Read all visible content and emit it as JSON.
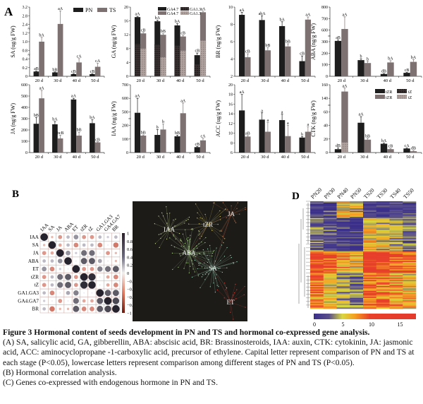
{
  "panel_labels": {
    "a": "A",
    "b": "B",
    "c": "C",
    "d": "D"
  },
  "legend_pn_ts": {
    "pn": "PN",
    "ts": "TS"
  },
  "legend_ga": {
    "pn_ga47": "GA4.7",
    "pn_ga13": "GA1.3",
    "ts_ga47": "GA4.7",
    "ts_ga13": "GA1.3"
  },
  "legend_ctk": {
    "pn_tzr": "tZR",
    "pn_tz": "tZ",
    "ts_tzr": "tZR",
    "ts_tz": "tZ"
  },
  "colors": {
    "pn": "#1e1d1d",
    "ts": "#7d7171",
    "pn_lower": "#3a3232",
    "ts_lower": "#a99c98",
    "bg_c": "#1c1b18"
  },
  "chart_data": [
    {
      "type": "bar",
      "id": "sa",
      "ylabel": "SA (ug/g FW)",
      "categories": [
        "20 d",
        "30 d",
        "40 d",
        "50 d"
      ],
      "ticks": [
        0,
        0.2,
        0.4,
        0.8,
        1.0,
        1.2,
        2.4,
        2.8,
        3.2
      ],
      "tick_labels": [
        "0",
        "0.2",
        "0.4",
        "0.8",
        "1.0",
        "1.2",
        "2.4",
        "2.8",
        "3.2"
      ],
      "breaks": [
        2,
        5
      ],
      "series": [
        {
          "name": "PN",
          "values": [
            0.11,
            0.09,
            0.05,
            0.05
          ],
          "errors": [
            0.01,
            0.01,
            0.01,
            0.01
          ],
          "letters": [
            "aB",
            "bB",
            "cB",
            "cB"
          ]
        },
        {
          "name": "TS",
          "values": [
            1.0,
            2.42,
            0.32,
            0.22
          ],
          "errors": [
            0.1,
            0.6,
            0.1,
            0.08
          ],
          "letters": [
            "bA",
            "aA",
            "cA",
            "cA"
          ]
        }
      ]
    },
    {
      "type": "bar",
      "id": "ga",
      "ylabel": "GA (ng/g FW)",
      "categories": [
        "20 d",
        "30 d",
        "40 d",
        "50 d"
      ],
      "stacked": true,
      "ticks": [
        0,
        4,
        8,
        12,
        16,
        20
      ],
      "tick_labels": [
        "0",
        "4",
        "8",
        "12",
        "16",
        "20"
      ],
      "breaks": [],
      "series": [
        {
          "name": "PN",
          "values": [
            17.1,
            15.9,
            14.7,
            6.1
          ],
          "lower": [
            9.3,
            9.2,
            8.8,
            3.4
          ],
          "errors": [
            0.2,
            0.3,
            0.5,
            0.6
          ],
          "letters": [
            "aA",
            "bA",
            "bA",
            "cB"
          ]
        },
        {
          "name": "TS",
          "values": [
            12.4,
            12.0,
            11.5,
            18.5
          ],
          "lower": [
            8.0,
            5.5,
            7.4,
            10.3
          ],
          "errors": [
            0.3,
            0.3,
            0.3,
            0.3
          ],
          "letters": [
            "cB",
            "bB",
            "cB",
            "aA"
          ]
        }
      ]
    },
    {
      "type": "bar",
      "id": "br",
      "ylabel": "BR (ng/g FW)",
      "categories": [
        "20 d",
        "30 d",
        "40 d",
        "50 d"
      ],
      "ticks": [
        2,
        4,
        6,
        8,
        10
      ],
      "tick_labels": [
        "2",
        "4",
        "6",
        "8",
        "10"
      ],
      "breaks": [],
      "series": [
        {
          "name": "PN",
          "values": [
            9.1,
            8.5,
            7.8,
            3.75
          ],
          "errors": [
            0.3,
            0.5,
            0.5,
            0.6
          ],
          "letters": [
            "aA",
            "abA",
            "bA",
            "cB"
          ]
        },
        {
          "name": "TS",
          "values": [
            4.2,
            5.0,
            5.45,
            8.55
          ],
          "errors": [
            0.4,
            0.3,
            0.3,
            0.3
          ],
          "letters": [
            "cB",
            "bB",
            "bB",
            "aA"
          ]
        }
      ]
    },
    {
      "type": "bar",
      "id": "aba",
      "ylabel": "ABA (ng/g FW)",
      "categories": [
        "20 d",
        "30 d",
        "40 d",
        "50 d"
      ],
      "ticks": [
        0,
        100,
        200,
        300,
        600,
        700,
        800
      ],
      "tick_labels": [
        "0",
        "100",
        "200",
        "300",
        "600",
        "700",
        "800"
      ],
      "breaks": [
        3
      ],
      "series": [
        {
          "name": "PN",
          "values": [
            320,
            140,
            20,
            30
          ],
          "errors": [
            25,
            12,
            4,
            4
          ],
          "letters": [
            "aB",
            "b",
            "dB",
            "cB"
          ]
        },
        {
          "name": "TS",
          "values": [
            610,
            115,
            120,
            125
          ],
          "errors": [
            105,
            15,
            15,
            20
          ],
          "letters": [
            "aA",
            "b",
            "bA",
            "bA"
          ]
        }
      ]
    },
    {
      "type": "bar",
      "id": "ja",
      "ylabel": "JA (ng/g FW)",
      "categories": [
        "20 d",
        "30 d",
        "40 d",
        "50 d"
      ],
      "ticks": [
        0,
        100,
        200,
        300,
        400,
        500,
        600
      ],
      "tick_labels": [
        "0",
        "100",
        "200",
        "300",
        "400",
        "500",
        "600"
      ],
      "breaks": [],
      "series": [
        {
          "name": "PN",
          "values": [
            255,
            250,
            470,
            260
          ],
          "errors": [
            55,
            25,
            10,
            30
          ],
          "letters": [
            "bB",
            "bA",
            "aA",
            "bA"
          ]
        },
        {
          "name": "TS",
          "values": [
            480,
            125,
            150,
            90
          ],
          "errors": [
            70,
            28,
            30,
            5
          ],
          "letters": [
            "aA",
            "bcB",
            "bB",
            "cB"
          ]
        }
      ]
    },
    {
      "type": "bar",
      "id": "iaa",
      "ylabel": "IAA (ng/g FW)",
      "categories": [
        "20 d",
        "30 d",
        "40 d",
        "50 d"
      ],
      "ticks": [
        0,
        100,
        200,
        500,
        600,
        700
      ],
      "tick_labels": [
        "0",
        "100",
        "200",
        "500",
        "600",
        "700"
      ],
      "breaks": [
        2
      ],
      "series": [
        {
          "name": "PN",
          "values": [
            480,
            130,
            120,
            40
          ],
          "errors": [
            120,
            40,
            8,
            5
          ],
          "letters": [
            "aA",
            "b",
            "bB",
            "cB"
          ]
        },
        {
          "name": "TS",
          "values": [
            125,
            170,
            470,
            90
          ],
          "errors": [
            5,
            60,
            95,
            15
          ],
          "letters": [
            "bB",
            "b",
            "aA",
            "cA"
          ]
        }
      ]
    },
    {
      "type": "bar",
      "id": "acc",
      "ylabel": "ACC (ug/g FW)",
      "categories": [
        "20 d",
        "30 d",
        "40 d",
        "50 d"
      ],
      "ticks": [
        6,
        8,
        10,
        12,
        14,
        16,
        18,
        20
      ],
      "tick_labels": [
        "6",
        "8",
        "10",
        "12",
        "14",
        "16",
        "18",
        "20"
      ],
      "breaks": [],
      "series": [
        {
          "name": "PN",
          "values": [
            14.7,
            12.8,
            12.7,
            9.1
          ],
          "errors": [
            3.3,
            1.4,
            1.2,
            0.2
          ],
          "letters": [
            "aA",
            "a",
            "a",
            "b"
          ]
        },
        {
          "name": "TS",
          "values": [
            9.3,
            10.3,
            9.4,
            10.3
          ],
          "errors": [
            0.2,
            1.9,
            2.2,
            1.0
          ],
          "letters": [
            "aB",
            "a",
            "a",
            "a"
          ]
        }
      ]
    },
    {
      "type": "bar",
      "id": "ctk",
      "ylabel": "CTK (ng/g FW)",
      "categories": [
        "20 d",
        "30 d",
        "40 d",
        "50 d"
      ],
      "stacked": true,
      "ticks": [
        0,
        20,
        40,
        60,
        140,
        160
      ],
      "tick_labels": [
        "0",
        "20",
        "40",
        "60",
        "140",
        "160"
      ],
      "breaks": [
        3
      ],
      "series": [
        {
          "name": "PN",
          "values": [
            5,
            44,
            13,
            6
          ],
          "lower": [
            0,
            0,
            0,
            0
          ],
          "errors": [
            2,
            9,
            1,
            1
          ],
          "letters": [
            "dB",
            "aA",
            "bA",
            "cA"
          ]
        },
        {
          "name": "TS",
          "values": [
            150,
            19,
            5,
            2
          ],
          "lower": [
            15,
            0,
            0,
            0
          ],
          "errors": [
            5,
            2,
            1,
            1
          ],
          "letters": [
            "aA",
            "bB",
            "cB",
            "dB"
          ]
        }
      ]
    },
    {
      "type": "heatmap",
      "id": "correlation",
      "title": "Hormonal correlation",
      "labels": [
        "IAA",
        "SA",
        "JA",
        "ABA",
        "ET",
        "tZR",
        "tZ",
        "GA1.GA3",
        "GA4.GA7",
        "BR"
      ],
      "matrix": [
        [
          1,
          -0.1,
          -0.3,
          0.2,
          0.4,
          -0.3,
          -0.3,
          0.2,
          0.1,
          0.2
        ],
        [
          -0.1,
          1,
          -0.2,
          0.2,
          -0.4,
          0.2,
          0.2,
          -0.4,
          0,
          -0.5
        ],
        [
          -0.3,
          -0.2,
          1,
          0.4,
          0.1,
          0.6,
          0.6,
          0,
          -0.3,
          -0.1
        ],
        [
          0.2,
          0.2,
          0.4,
          1,
          0,
          0.7,
          0.7,
          0.3,
          0,
          -0.1
        ],
        [
          0.4,
          -0.4,
          0.1,
          0,
          1,
          -0.3,
          -0.3,
          0.5,
          0.6,
          0.7
        ],
        [
          -0.3,
          0.2,
          0.6,
          0.7,
          -0.3,
          1,
          0.95,
          0,
          -0.2,
          -0.4
        ],
        [
          -0.3,
          0.2,
          0.6,
          0.7,
          -0.3,
          0.95,
          1,
          0,
          -0.2,
          -0.4
        ],
        [
          0.2,
          -0.4,
          0,
          0.3,
          0.5,
          0,
          0,
          1,
          0.7,
          0.7
        ],
        [
          0.1,
          0,
          -0.3,
          0,
          0.6,
          -0.2,
          -0.2,
          0.7,
          1,
          0.8
        ],
        [
          0.2,
          -0.5,
          -0.1,
          -0.1,
          0.7,
          -0.4,
          -0.4,
          0.7,
          0.8,
          1
        ]
      ],
      "colorbar_ticks": [
        "1",
        "0.8",
        "0.6",
        "0.4",
        "0.2",
        "0",
        "−0.2",
        "−0.4",
        "−0.6",
        "−0.8",
        "−1"
      ]
    },
    {
      "type": "heatmap",
      "id": "coexpression",
      "columns": [
        "PN20",
        "PN30",
        "PN40",
        "PN50",
        "TS20",
        "TS30",
        "TS40",
        "TS50"
      ],
      "colorbar_ticks": [
        "0",
        "5",
        "10",
        "15"
      ],
      "range": [
        0,
        18
      ]
    }
  ],
  "network": {
    "hubs": [
      "IAA",
      "tZR",
      "ABA",
      "SA",
      "JA",
      "ET"
    ]
  },
  "caption": {
    "title": "Figure 3 Hormonal content of seeds development in PN and TS and hormonal co-expressed gene analysis.",
    "a": "(A) SA, salicylic acid, GA, gibberellin, ABA: abscisic acid, BR: Brassinosteroids, IAA: auxin, CTK: cytokinin, JA: jasmonic acid, ACC: aminocyclopropane -1-carboxylic acid, precursor of ethylene. Capital letter represent comparison of PN and TS at each stage (P<0.05), lowercase letters represent comparison among different stages of PN and TS (P<0.05).",
    "b": "(B) Hormonal correlation analysis.",
    "c": "(C) Genes co-expressed with endogenous hormone in PN and TS."
  }
}
